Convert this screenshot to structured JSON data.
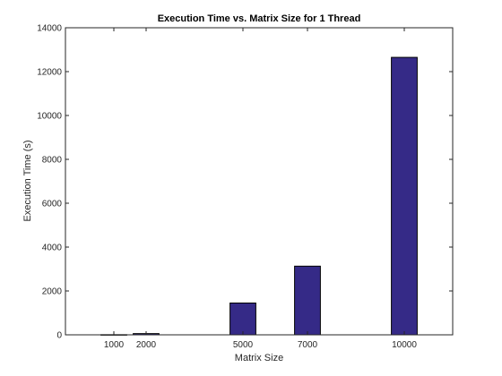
{
  "chart_data": {
    "type": "bar",
    "title": "Execution Time vs. Matrix Size for 1 Thread",
    "xlabel": "Matrix Size",
    "ylabel": "Execution Time (s)",
    "categories": [
      "1000",
      "2000",
      "5000",
      "7000",
      "10000"
    ],
    "x": [
      1000,
      2000,
      5000,
      7000,
      10000
    ],
    "values": [
      6,
      55,
      1450,
      3130,
      12650
    ],
    "xlim": [
      -500,
      11500
    ],
    "ylim": [
      0,
      14000
    ],
    "yticks": [
      0,
      2000,
      4000,
      6000,
      8000,
      10000,
      12000,
      14000
    ],
    "bar_width": 800,
    "bar_color": "#352a87",
    "grid": false,
    "legend": "none"
  }
}
